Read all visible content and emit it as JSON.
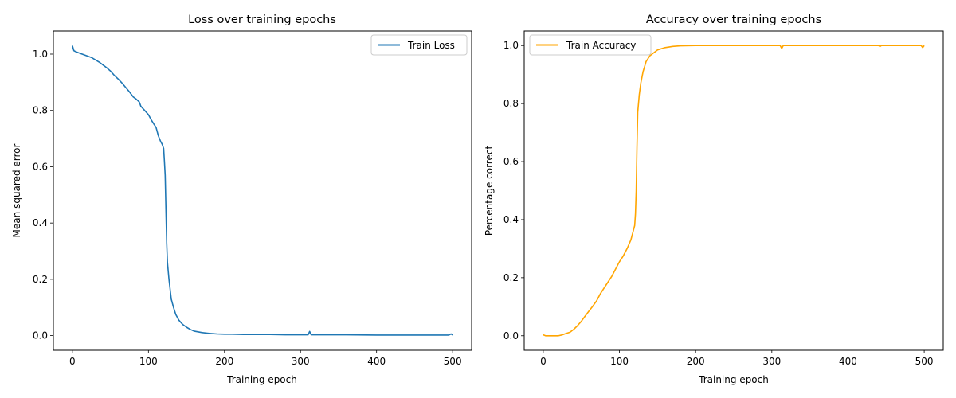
{
  "chart_data": [
    {
      "type": "line",
      "title": "Loss over training epochs",
      "xlabel": "Training epoch",
      "ylabel": "Mean squared error",
      "xlim": [
        -25,
        525
      ],
      "ylim": [
        -0.052,
        1.082
      ],
      "xticks": [
        0,
        100,
        200,
        300,
        400,
        500
      ],
      "xtick_labels": [
        "0",
        "100",
        "200",
        "300",
        "400",
        "500"
      ],
      "yticks": [
        0.0,
        0.2,
        0.4,
        0.6,
        0.8,
        1.0
      ],
      "ytick_labels": [
        "0.0",
        "0.2",
        "0.4",
        "0.6",
        "0.8",
        "1.0"
      ],
      "grid": false,
      "legend_position": "upper right",
      "series": [
        {
          "name": "Train Loss",
          "color": "#1f77b4",
          "points": [
            [
              0,
              1.03
            ],
            [
              2,
              1.012
            ],
            [
              5,
              1.008
            ],
            [
              10,
              1.003
            ],
            [
              15,
              0.998
            ],
            [
              20,
              0.993
            ],
            [
              25,
              0.988
            ],
            [
              30,
              0.98
            ],
            [
              35,
              0.972
            ],
            [
              40,
              0.962
            ],
            [
              45,
              0.952
            ],
            [
              50,
              0.94
            ],
            [
              55,
              0.925
            ],
            [
              60,
              0.912
            ],
            [
              65,
              0.898
            ],
            [
              70,
              0.882
            ],
            [
              75,
              0.866
            ],
            [
              80,
              0.848
            ],
            [
              84,
              0.84
            ],
            [
              88,
              0.83
            ],
            [
              90,
              0.815
            ],
            [
              95,
              0.8
            ],
            [
              100,
              0.785
            ],
            [
              104,
              0.765
            ],
            [
              107,
              0.752
            ],
            [
              110,
              0.74
            ],
            [
              113,
              0.71
            ],
            [
              116,
              0.69
            ],
            [
              118,
              0.68
            ],
            [
              120,
              0.665
            ],
            [
              121,
              0.62
            ],
            [
              122,
              0.57
            ],
            [
              123,
              0.45
            ],
            [
              124,
              0.33
            ],
            [
              125,
              0.26
            ],
            [
              127,
              0.2
            ],
            [
              130,
              0.13
            ],
            [
              133,
              0.1
            ],
            [
              136,
              0.075
            ],
            [
              140,
              0.055
            ],
            [
              145,
              0.04
            ],
            [
              150,
              0.03
            ],
            [
              155,
              0.022
            ],
            [
              160,
              0.016
            ],
            [
              170,
              0.011
            ],
            [
              180,
              0.008
            ],
            [
              190,
              0.006
            ],
            [
              200,
              0.005
            ],
            [
              210,
              0.005
            ],
            [
              225,
              0.004
            ],
            [
              240,
              0.004
            ],
            [
              260,
              0.004
            ],
            [
              280,
              0.003
            ],
            [
              300,
              0.003
            ],
            [
              310,
              0.003
            ],
            [
              312,
              0.015
            ],
            [
              314,
              0.003
            ],
            [
              330,
              0.003
            ],
            [
              360,
              0.003
            ],
            [
              400,
              0.002
            ],
            [
              440,
              0.002
            ],
            [
              480,
              0.002
            ],
            [
              495,
              0.002
            ],
            [
              498,
              0.006
            ],
            [
              500,
              0.002
            ]
          ]
        }
      ]
    },
    {
      "type": "line",
      "title": "Accuracy over training epochs",
      "xlabel": "Training epoch",
      "ylabel": "Percentage correct",
      "xlim": [
        -25,
        525
      ],
      "ylim": [
        -0.05,
        1.05
      ],
      "xticks": [
        0,
        100,
        200,
        300,
        400,
        500
      ],
      "xtick_labels": [
        "0",
        "100",
        "200",
        "300",
        "400",
        "500"
      ],
      "yticks": [
        0.0,
        0.2,
        0.4,
        0.6,
        0.8,
        1.0
      ],
      "ytick_labels": [
        "0.0",
        "0.2",
        "0.4",
        "0.6",
        "0.8",
        "1.0"
      ],
      "grid": false,
      "legend_position": "upper left",
      "series": [
        {
          "name": "Train Accuracy",
          "color": "#ffa500",
          "points": [
            [
              0,
              0.003
            ],
            [
              3,
              0.0
            ],
            [
              10,
              0.0
            ],
            [
              20,
              0.0
            ],
            [
              25,
              0.003
            ],
            [
              30,
              0.008
            ],
            [
              35,
              0.012
            ],
            [
              40,
              0.022
            ],
            [
              45,
              0.035
            ],
            [
              50,
              0.05
            ],
            [
              55,
              0.068
            ],
            [
              60,
              0.085
            ],
            [
              65,
              0.102
            ],
            [
              70,
              0.12
            ],
            [
              75,
              0.145
            ],
            [
              80,
              0.165
            ],
            [
              85,
              0.185
            ],
            [
              90,
              0.205
            ],
            [
              95,
              0.23
            ],
            [
              100,
              0.255
            ],
            [
              105,
              0.275
            ],
            [
              110,
              0.3
            ],
            [
              115,
              0.33
            ],
            [
              118,
              0.36
            ],
            [
              120,
              0.38
            ],
            [
              121,
              0.42
            ],
            [
              122,
              0.5
            ],
            [
              123,
              0.65
            ],
            [
              124,
              0.77
            ],
            [
              126,
              0.83
            ],
            [
              128,
              0.87
            ],
            [
              131,
              0.91
            ],
            [
              135,
              0.945
            ],
            [
              140,
              0.965
            ],
            [
              145,
              0.975
            ],
            [
              150,
              0.985
            ],
            [
              160,
              0.993
            ],
            [
              170,
              0.997
            ],
            [
              180,
              0.999
            ],
            [
              200,
              1.0
            ],
            [
              300,
              1.0
            ],
            [
              311,
              1.0
            ],
            [
              313,
              0.99
            ],
            [
              315,
              1.0
            ],
            [
              440,
              1.0
            ],
            [
              442,
              0.997
            ],
            [
              444,
              1.0
            ],
            [
              496,
              1.0
            ],
            [
              498,
              0.993
            ],
            [
              500,
              1.0
            ]
          ]
        }
      ]
    }
  ]
}
